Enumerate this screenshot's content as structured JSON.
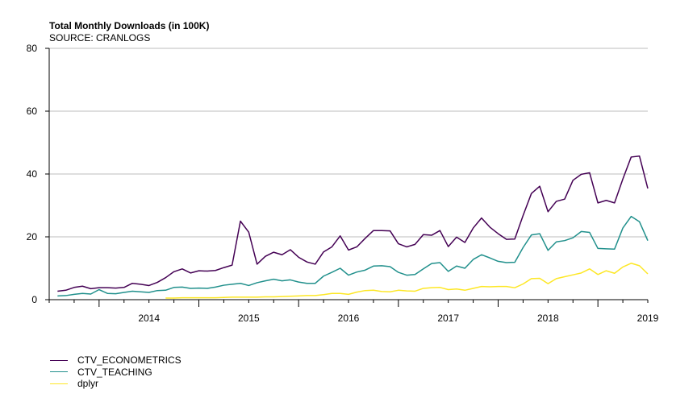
{
  "chart_data": {
    "type": "line",
    "title": "Total Monthly Downloads (in 100K)",
    "subtitle": "SOURCE: CRANLOGS",
    "xlabel": "",
    "ylabel": "",
    "ylim": [
      0,
      80
    ],
    "yticks": [
      0,
      20,
      40,
      60,
      80
    ],
    "xlim": [
      "2013-07",
      "2019-07"
    ],
    "xticks": [
      "2014",
      "2015",
      "2016",
      "2017",
      "2018",
      "2019"
    ],
    "grid": "horizontal",
    "legend_position": "bottom-left",
    "x_start": "2013-08",
    "series": [
      {
        "name": "CTV_ECONOMETRICS",
        "color": "#440154",
        "values": [
          2.7,
          3.0,
          3.9,
          4.3,
          3.5,
          3.8,
          3.8,
          3.7,
          3.9,
          5.2,
          4.9,
          4.5,
          5.5,
          7.0,
          8.9,
          9.8,
          8.5,
          9.2,
          9.1,
          9.3,
          10.2,
          11.0,
          25.0,
          21.5,
          11.3,
          13.8,
          15.1,
          14.3,
          15.9,
          13.5,
          12.0,
          11.3,
          15.2,
          16.8,
          20.3,
          15.8,
          16.8,
          19.5,
          22.0,
          22.0,
          21.9,
          17.8,
          16.8,
          17.6,
          20.7,
          20.5,
          22.0,
          16.9,
          19.9,
          18.2,
          22.8,
          26.0,
          23.1,
          21.0,
          19.2,
          19.3,
          26.8,
          33.8,
          36.1,
          28.0,
          31.3,
          32.0,
          38.0,
          39.9,
          40.4,
          30.8,
          31.6,
          30.8,
          38.4,
          45.4,
          45.7,
          35.4
        ],
        "legend_label": "CTV_ECONOMETRICS"
      },
      {
        "name": "CTV_TEACHING",
        "color": "#21908c",
        "values": [
          1.2,
          1.3,
          1.7,
          2.0,
          1.8,
          3.2,
          2.0,
          1.9,
          2.3,
          2.7,
          2.5,
          2.3,
          2.9,
          3.0,
          3.9,
          4.0,
          3.6,
          3.7,
          3.6,
          4.0,
          4.6,
          4.9,
          5.2,
          4.5,
          5.4,
          6.0,
          6.5,
          6.0,
          6.3,
          5.6,
          5.2,
          5.2,
          7.5,
          8.7,
          10.0,
          7.8,
          8.8,
          9.4,
          10.7,
          10.8,
          10.5,
          8.7,
          7.8,
          8.0,
          9.8,
          11.5,
          11.8,
          9.0,
          10.7,
          10.0,
          12.8,
          14.3,
          13.3,
          12.2,
          11.8,
          11.9,
          16.6,
          20.6,
          21.0,
          15.7,
          18.4,
          18.8,
          19.7,
          21.7,
          21.4,
          16.3,
          16.2,
          16.1,
          22.8,
          26.5,
          24.8,
          18.8
        ],
        "legend_label": "CTV_TEACHING"
      },
      {
        "name": "dplyr",
        "color": "#fde725",
        "values": [
          null,
          null,
          null,
          null,
          null,
          null,
          null,
          null,
          null,
          null,
          null,
          null,
          null,
          0.5,
          0.5,
          0.6,
          0.6,
          0.6,
          0.6,
          0.6,
          0.7,
          0.8,
          0.8,
          0.8,
          0.8,
          0.9,
          0.9,
          1.0,
          1.1,
          1.2,
          1.3,
          1.3,
          1.6,
          2.0,
          2.0,
          1.7,
          2.4,
          2.9,
          3.0,
          2.6,
          2.5,
          3.0,
          2.8,
          2.7,
          3.6,
          3.8,
          3.9,
          3.2,
          3.4,
          3.0,
          3.6,
          4.2,
          4.1,
          4.2,
          4.2,
          3.8,
          5.0,
          6.7,
          6.8,
          5.1,
          6.7,
          7.3,
          7.9,
          8.5,
          9.8,
          8.0,
          9.2,
          8.4,
          10.4,
          11.6,
          10.8,
          8.2
        ],
        "legend_label": "dplyr"
      }
    ]
  }
}
